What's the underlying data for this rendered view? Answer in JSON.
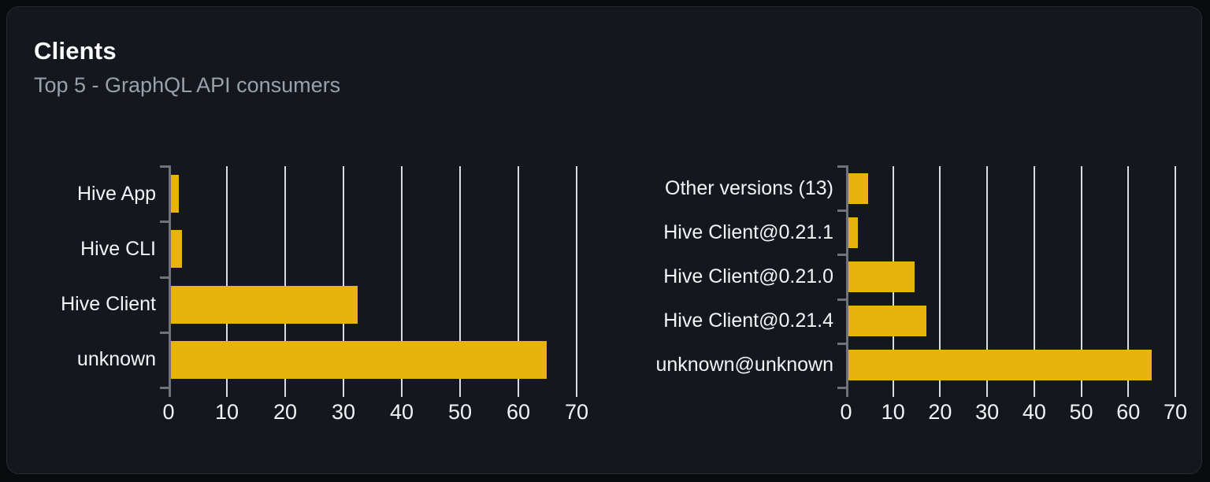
{
  "panel": {
    "title": "Clients",
    "subtitle": "Top 5 - GraphQL API consumers"
  },
  "colors": {
    "bar": "#e8b30c",
    "gridline": "#d9dce1",
    "axis": "#6e737b",
    "label_text": "#f3f4f6",
    "title_text": "#fafafa",
    "subtitle_text": "#99a1ab",
    "card_background": "#14181e",
    "page_background": "#0a0b0e"
  },
  "chart_data": [
    {
      "type": "bar",
      "orientation": "horizontal",
      "name": "clients-by-name",
      "categories": [
        "Hive App",
        "Hive CLI",
        "Hive Client",
        "unknown"
      ],
      "values": [
        1.3,
        1.9,
        32,
        64.4
      ],
      "xlim": [
        0,
        70
      ],
      "xticks": [
        0,
        10,
        20,
        30,
        40,
        50,
        60,
        70
      ],
      "grid": true,
      "legend": false,
      "bar_color": "#e8b30c"
    },
    {
      "type": "bar",
      "orientation": "horizontal",
      "name": "clients-by-version",
      "categories": [
        "Other versions (13)",
        "Hive Client@0.21.1",
        "Hive Client@0.21.0",
        "Hive Client@0.21.4",
        "unknown@unknown"
      ],
      "values": [
        4.2,
        2,
        14,
        16.5,
        64.4
      ],
      "xlim": [
        0,
        70
      ],
      "xticks": [
        0,
        10,
        20,
        30,
        40,
        50,
        60,
        70
      ],
      "grid": true,
      "legend": false,
      "bar_color": "#e8b30c"
    }
  ]
}
